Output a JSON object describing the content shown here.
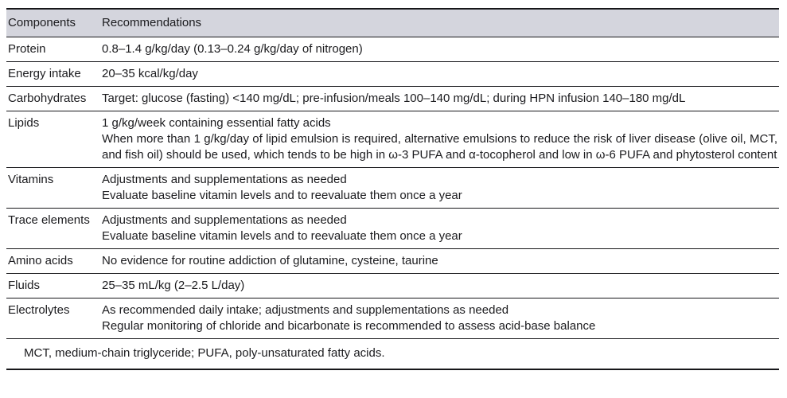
{
  "table": {
    "headers": [
      "Components",
      "Recommendations"
    ],
    "rows": [
      {
        "component": "Protein",
        "lines": [
          "0.8–1.4 g/kg/day (0.13–0.24 g/kg/day of nitrogen)"
        ]
      },
      {
        "component": "Energy intake",
        "lines": [
          "20–35 kcal/kg/day"
        ]
      },
      {
        "component": "Carbohydrates",
        "lines": [
          "Target: glucose (fasting) <140 mg/dL; pre-infusion/meals 100–140 mg/dL; during HPN infusion 140–180 mg/dL"
        ]
      },
      {
        "component": "Lipids",
        "lines": [
          "1 g/kg/week containing essential fatty acids",
          "When more than 1 g/kg/day of lipid emulsion is required, alternative emulsions to reduce the risk of liver disease (olive oil, MCT, and fish oil) should be used, which tends to be high in ω-3 PUFA and α-tocopherol and low in ω-6 PUFA and phytosterol content"
        ]
      },
      {
        "component": "Vitamins",
        "lines": [
          "Adjustments and supplementations as needed",
          "Evaluate baseline vitamin levels and to reevaluate them once a year"
        ]
      },
      {
        "component": "Trace elements",
        "lines": [
          "Adjustments and supplementations as needed",
          "Evaluate baseline vitamin levels and to reevaluate them once a year"
        ]
      },
      {
        "component": "Amino acids",
        "lines": [
          "No evidence for routine addiction of glutamine, cysteine, taurine"
        ]
      },
      {
        "component": "Fluids",
        "lines": [
          "25–35 mL/kg (2–2.5 L/day)"
        ]
      },
      {
        "component": "Electrolytes",
        "lines": [
          "As recommended daily intake; adjustments and supplementations as needed",
          "Regular monitoring of chloride and bicarbonate is recommended to assess acid-base balance"
        ]
      }
    ],
    "footnote": "MCT, medium-chain triglyceride; PUFA, poly-unsaturated fatty acids."
  },
  "colors": {
    "header_bg": "#d4d5dd",
    "text": "#1b1b1e",
    "rule": "#17171a",
    "page_bg": "#ffffff"
  }
}
